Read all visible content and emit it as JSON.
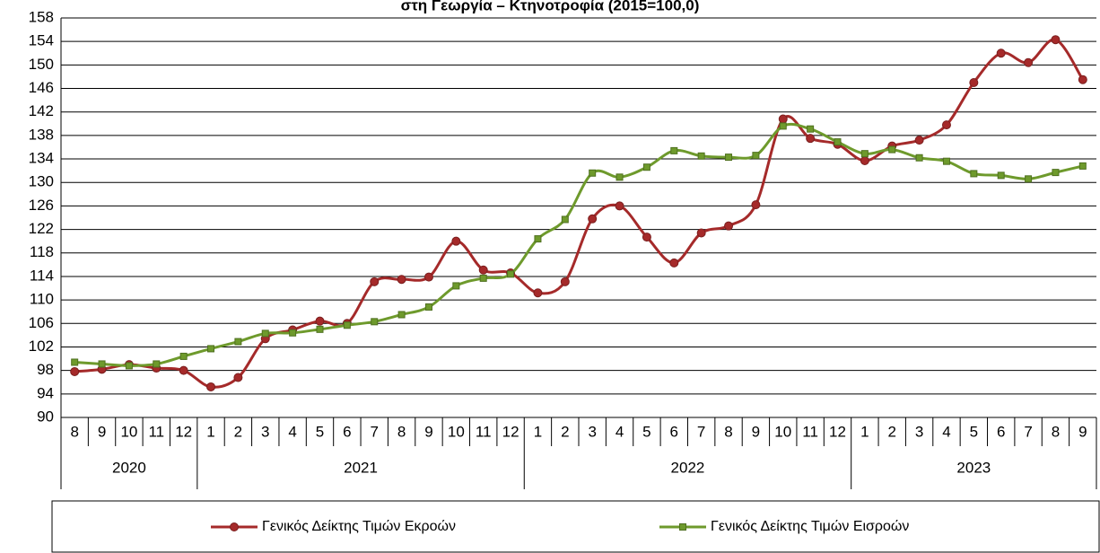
{
  "chart_data": {
    "type": "line",
    "title": "στη Γεωργία – Κτηνοτροφία (2015=100,0)",
    "groups": [
      {
        "label": "2020",
        "categories": [
          "8",
          "9",
          "10",
          "11",
          "12"
        ]
      },
      {
        "label": "2021",
        "categories": [
          "1",
          "2",
          "3",
          "4",
          "5",
          "6",
          "7",
          "8",
          "9",
          "10",
          "11",
          "12"
        ]
      },
      {
        "label": "2022",
        "categories": [
          "1",
          "2",
          "3",
          "4",
          "5",
          "6",
          "7",
          "8",
          "9",
          "10",
          "11",
          "12"
        ]
      },
      {
        "label": "2023",
        "categories": [
          "1",
          "2",
          "3",
          "4",
          "5",
          "6",
          "7",
          "8",
          "9"
        ]
      }
    ],
    "series": [
      {
        "name": "Γενικός Δείκτης Τιμών Εκροών",
        "color": "#a52a2a",
        "marker": "circle",
        "values": [
          97.8,
          98.2,
          99.0,
          98.4,
          98.0,
          95.2,
          96.8,
          103.4,
          104.9,
          106.4,
          106.0,
          113.1,
          113.5,
          113.9,
          120.0,
          115.1,
          114.6,
          111.2,
          113.1,
          123.8,
          126.0,
          120.7,
          116.3,
          121.4,
          122.6,
          126.2,
          140.8,
          137.5,
          136.5,
          133.7,
          136.2,
          137.2,
          139.8,
          147.0,
          152.0,
          150.4,
          154.3,
          147.5
        ]
      },
      {
        "name": "Γενικός Δείκτης Τιμών Εισροών",
        "color": "#6e9a2c",
        "marker": "square",
        "values": [
          99.4,
          99.1,
          98.8,
          99.1,
          100.4,
          101.7,
          102.9,
          104.3,
          104.4,
          105.0,
          105.7,
          106.3,
          107.5,
          108.8,
          112.4,
          113.7,
          114.4,
          120.4,
          123.7,
          131.6,
          130.9,
          132.6,
          135.4,
          134.5,
          134.3,
          134.6,
          139.6,
          139.1,
          136.9,
          134.9,
          135.6,
          134.2,
          133.6,
          131.5,
          131.2,
          130.6,
          131.7,
          132.8
        ]
      }
    ],
    "ylim": [
      90,
      158
    ],
    "yticks": [
      90,
      94,
      98,
      102,
      106,
      110,
      114,
      118,
      122,
      126,
      130,
      134,
      138,
      142,
      146,
      150,
      154,
      158
    ],
    "grid": true,
    "legend": "bottom"
  }
}
